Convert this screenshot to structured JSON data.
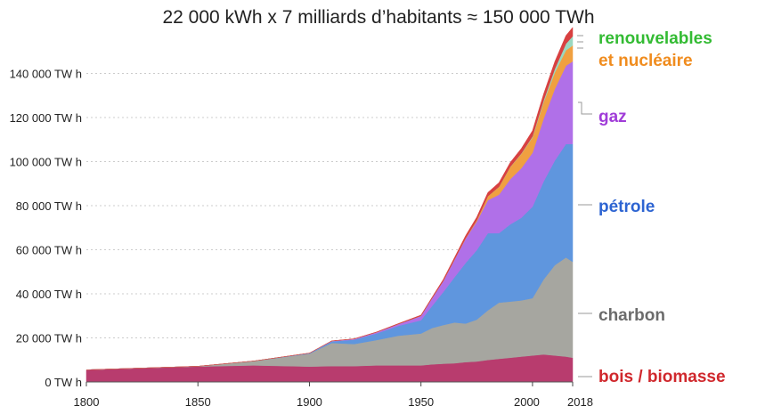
{
  "title": "22 000 kWh x 7 milliards d’habitants  ≈ 150 000 TWh",
  "colors": {
    "bois_biomasse": "#b83c6e",
    "charbon": "#a6a6a0",
    "petrole": "#5f96de",
    "gaz": "#b070e8",
    "nucleaire": "#f0a040",
    "renouvelables": "#9ad8c0",
    "hydro_red": "#d84040",
    "grid": "#cccccc"
  },
  "chart_data": {
    "type": "area",
    "stacked": true,
    "title": "22 000 kWh x 7 milliards d’habitants  ≈ 150 000 TWh",
    "xlabel": "",
    "ylabel": "",
    "xlim": [
      1800,
      2018
    ],
    "ylim": [
      0,
      160000
    ],
    "grid": true,
    "x_ticks": [
      1800,
      1850,
      1900,
      1950,
      2000,
      2018
    ],
    "y_ticks": [
      {
        "value": 0,
        "label": "0 TW h"
      },
      {
        "value": 20000,
        "label": "20 000 TW h"
      },
      {
        "value": 40000,
        "label": "40 000 TW h"
      },
      {
        "value": 60000,
        "label": "60 000 TW h"
      },
      {
        "value": 80000,
        "label": "80 000 TW h"
      },
      {
        "value": 100000,
        "label": "100 000 TW h"
      },
      {
        "value": 120000,
        "label": "120 000 TW h"
      },
      {
        "value": 140000,
        "label": "140 000 TW h"
      }
    ],
    "x": [
      1800,
      1850,
      1875,
      1900,
      1910,
      1920,
      1930,
      1940,
      1950,
      1955,
      1960,
      1965,
      1970,
      1975,
      1980,
      1985,
      1990,
      1995,
      2000,
      2005,
      2010,
      2015,
      2018
    ],
    "series": [
      {
        "key": "bois_biomasse",
        "values": [
          5500,
          7000,
          7500,
          7000,
          7200,
          7200,
          7500,
          7500,
          7500,
          8000,
          8300,
          8500,
          9000,
          9300,
          10000,
          10500,
          11000,
          11500,
          12000,
          12500,
          12000,
          11500,
          11000
        ]
      },
      {
        "key": "charbon",
        "values": [
          0,
          100,
          2000,
          5800,
          10500,
          10000,
          11500,
          13500,
          14500,
          16500,
          17500,
          18500,
          17500,
          19000,
          22500,
          25500,
          25500,
          25500,
          26000,
          34000,
          41000,
          45000,
          43500
        ]
      },
      {
        "key": "petrole",
        "values": [
          0,
          0,
          0,
          200,
          700,
          2000,
          3000,
          4500,
          6000,
          10000,
          15000,
          20500,
          27500,
          31500,
          35000,
          31500,
          35000,
          37500,
          41500,
          44500,
          47500,
          51500,
          53500
        ]
      },
      {
        "key": "gaz",
        "values": [
          0,
          0,
          0,
          100,
          200,
          300,
          500,
          800,
          2000,
          3500,
          5000,
          8000,
          11000,
          13000,
          15000,
          17500,
          20500,
          22500,
          24500,
          28500,
          32500,
          35500,
          37500
        ]
      },
      {
        "key": "nucleaire",
        "values": [
          0,
          0,
          0,
          0,
          0,
          0,
          0,
          0,
          0,
          0,
          10,
          50,
          200,
          600,
          1800,
          3500,
          5500,
          6500,
          7000,
          7500,
          7500,
          7000,
          7200
        ]
      },
      {
        "key": "renouvelables",
        "values": [
          0,
          0,
          0,
          0,
          0,
          0,
          0,
          0,
          0,
          0,
          0,
          0,
          0,
          0,
          0,
          50,
          100,
          200,
          400,
          800,
          1600,
          3000,
          4200
        ]
      },
      {
        "key": "hydro_red",
        "values": [
          0,
          0,
          0,
          0,
          50,
          100,
          150,
          250,
          350,
          450,
          700,
          900,
          1200,
          1400,
          1700,
          1900,
          2000,
          2300,
          2600,
          2900,
          3300,
          3700,
          4000
        ]
      }
    ],
    "labels": [
      {
        "key": "renouvelables",
        "text": "renouvelables",
        "color": "#33bb33"
      },
      {
        "key": "nucleaire",
        "text": "et nucléaire",
        "color": "#f08c1e"
      },
      {
        "key": "gaz",
        "text": "gaz",
        "color": "#a03cd8"
      },
      {
        "key": "petrole",
        "text": "pétrole",
        "color": "#2d64d2"
      },
      {
        "key": "charbon",
        "text": "charbon",
        "color": "#6b6b6b"
      },
      {
        "key": "bois_biomasse",
        "text": "bois / biomasse",
        "color": "#d0282d"
      }
    ]
  }
}
